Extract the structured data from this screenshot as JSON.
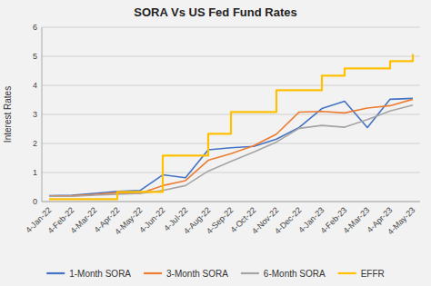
{
  "chart_data": {
    "type": "line",
    "title": "SORA Vs US Fed Fund Rates",
    "y_label": "Interest Rates",
    "categories": [
      "4-Jan-22",
      "4-Feb-22",
      "4-Mar-22",
      "4-Apr-22",
      "4-May-22",
      "4-Jun-22",
      "4-Jul-22",
      "4-Aug-22",
      "4-Sep-22",
      "4-Oct-22",
      "4-Nov-22",
      "4-Dec-22",
      "4-Jan-23",
      "4-Feb-23",
      "4-Mar-23",
      "4-Apr-23",
      "4-May-23"
    ],
    "series": [
      {
        "name": "1-Month SORA",
        "color": "#4472C4",
        "values": [
          0.2,
          0.22,
          0.28,
          0.35,
          0.38,
          0.92,
          0.82,
          1.78,
          1.85,
          1.9,
          2.15,
          2.55,
          3.2,
          3.45,
          2.55,
          3.52,
          3.55
        ]
      },
      {
        "name": "3-Month SORA",
        "color": "#ED7D31",
        "values": [
          0.19,
          0.2,
          0.24,
          0.3,
          0.28,
          0.55,
          0.72,
          1.42,
          1.65,
          1.92,
          2.32,
          3.08,
          3.1,
          3.05,
          3.22,
          3.3,
          3.52
        ]
      },
      {
        "name": "6-Month SORA",
        "color": "#A5A5A5",
        "values": [
          0.18,
          0.18,
          0.22,
          0.25,
          0.28,
          0.38,
          0.55,
          1.05,
          1.38,
          1.7,
          2.05,
          2.52,
          2.62,
          2.56,
          2.82,
          3.12,
          3.32
        ]
      },
      {
        "name": "EFFR",
        "color": "#FFC000",
        "type": "step",
        "values": [
          0.08,
          0.08,
          0.08,
          0.33,
          0.33,
          1.58,
          1.58,
          2.33,
          3.08,
          3.08,
          3.83,
          3.83,
          4.33,
          4.58,
          4.58,
          4.83,
          5.08
        ]
      }
    ],
    "ylim": [
      0,
      6
    ],
    "yticks": [
      0,
      1,
      2,
      3,
      4,
      5,
      6
    ],
    "grid": true,
    "legend": "bottom"
  }
}
